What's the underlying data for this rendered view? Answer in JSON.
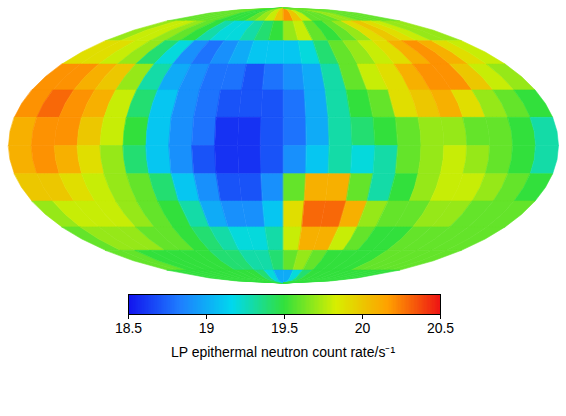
{
  "chart_data": {
    "type": "heatmap",
    "lon_edges": [
      -180,
      -165,
      -150,
      -135,
      -120,
      -105,
      -90,
      -75,
      -60,
      -45,
      -30,
      -15,
      0,
      15,
      30,
      45,
      60,
      75,
      90,
      105,
      120,
      135,
      150,
      165,
      180
    ],
    "lat_edges": [
      90,
      75,
      60,
      45,
      30,
      15,
      0,
      -15,
      -30,
      -45,
      -60,
      -75,
      -90
    ],
    "cells": [
      [
        19.6,
        19.6,
        19.6,
        19.6,
        19.6,
        19.5,
        19.5,
        19.5,
        19.6,
        19.7,
        19.8,
        20.0,
        20.2,
        20.0,
        19.8,
        19.6,
        19.6,
        19.6,
        19.7,
        19.7,
        19.6,
        19.6,
        19.6,
        19.6
      ],
      [
        19.7,
        19.8,
        19.8,
        19.7,
        19.6,
        19.5,
        19.3,
        19.2,
        19.2,
        19.3,
        19.4,
        19.5,
        19.7,
        19.8,
        19.6,
        19.5,
        19.6,
        19.7,
        19.9,
        20.0,
        19.9,
        19.8,
        19.7,
        19.7
      ],
      [
        19.9,
        19.9,
        19.8,
        19.7,
        19.4,
        19.2,
        18.9,
        18.8,
        18.9,
        19.0,
        19.1,
        19.1,
        19.1,
        19.2,
        19.4,
        19.6,
        19.7,
        19.8,
        19.9,
        20.1,
        20.2,
        20.1,
        19.9,
        19.8
      ],
      [
        20.2,
        20.2,
        20.1,
        20.0,
        19.7,
        19.3,
        19.0,
        18.9,
        18.8,
        18.8,
        18.7,
        18.8,
        18.9,
        19.0,
        19.3,
        19.6,
        19.8,
        19.9,
        20.1,
        20.2,
        20.2,
        20.0,
        19.8,
        19.7
      ],
      [
        20.2,
        20.3,
        20.2,
        20.1,
        19.8,
        19.4,
        19.1,
        18.9,
        18.8,
        18.7,
        18.7,
        18.7,
        18.8,
        19.0,
        19.3,
        19.5,
        19.6,
        19.9,
        20.0,
        20.1,
        19.9,
        19.7,
        19.6,
        19.5
      ],
      [
        20.1,
        20.2,
        20.2,
        20.0,
        19.8,
        19.5,
        19.1,
        18.9,
        18.8,
        18.6,
        18.6,
        18.7,
        18.8,
        19.0,
        19.3,
        19.4,
        19.5,
        19.6,
        19.7,
        19.7,
        19.6,
        19.6,
        19.5,
        19.3
      ],
      [
        20.1,
        20.2,
        20.1,
        19.9,
        19.7,
        19.4,
        19.1,
        18.9,
        18.7,
        18.6,
        18.6,
        18.7,
        18.9,
        19.1,
        19.3,
        19.2,
        19.3,
        19.6,
        19.7,
        19.8,
        19.7,
        19.6,
        19.5,
        19.3
      ],
      [
        20.0,
        20.0,
        19.9,
        19.8,
        19.7,
        19.6,
        19.4,
        19.1,
        18.9,
        18.7,
        18.7,
        18.9,
        19.6,
        20.1,
        20.1,
        19.6,
        19.3,
        19.5,
        19.7,
        19.8,
        19.8,
        19.7,
        19.6,
        19.5
      ],
      [
        19.7,
        19.8,
        19.8,
        19.8,
        19.7,
        19.6,
        19.5,
        19.3,
        19.0,
        18.9,
        18.9,
        19.1,
        19.9,
        20.3,
        20.3,
        20.1,
        19.7,
        19.6,
        19.6,
        19.7,
        19.7,
        19.6,
        19.6,
        19.6
      ],
      [
        19.6,
        19.7,
        19.7,
        19.7,
        19.6,
        19.6,
        19.5,
        19.4,
        19.3,
        19.2,
        19.2,
        19.3,
        19.8,
        20.1,
        20.1,
        19.8,
        19.6,
        19.5,
        19.5,
        19.6,
        19.6,
        19.6,
        19.6,
        19.6
      ],
      [
        19.6,
        19.6,
        19.5,
        19.5,
        19.5,
        19.5,
        19.5,
        19.4,
        19.4,
        19.3,
        19.3,
        19.4,
        19.6,
        19.7,
        19.6,
        19.5,
        19.5,
        19.5,
        19.5,
        19.6,
        19.6,
        19.6,
        19.6,
        19.6
      ],
      [
        19.5,
        19.5,
        19.5,
        19.5,
        19.5,
        19.5,
        19.5,
        19.5,
        19.5,
        19.4,
        19.2,
        19.0,
        19.0,
        19.2,
        19.4,
        19.5,
        19.5,
        19.5,
        19.5,
        19.5,
        19.5,
        19.5,
        19.5,
        19.5
      ]
    ],
    "colorbar": {
      "range": [
        18.5,
        20.5
      ],
      "ticks": [
        18.5,
        19,
        19.5,
        20,
        20.5
      ],
      "label": "LP epithermal neutron count rate/s⁻¹"
    }
  }
}
